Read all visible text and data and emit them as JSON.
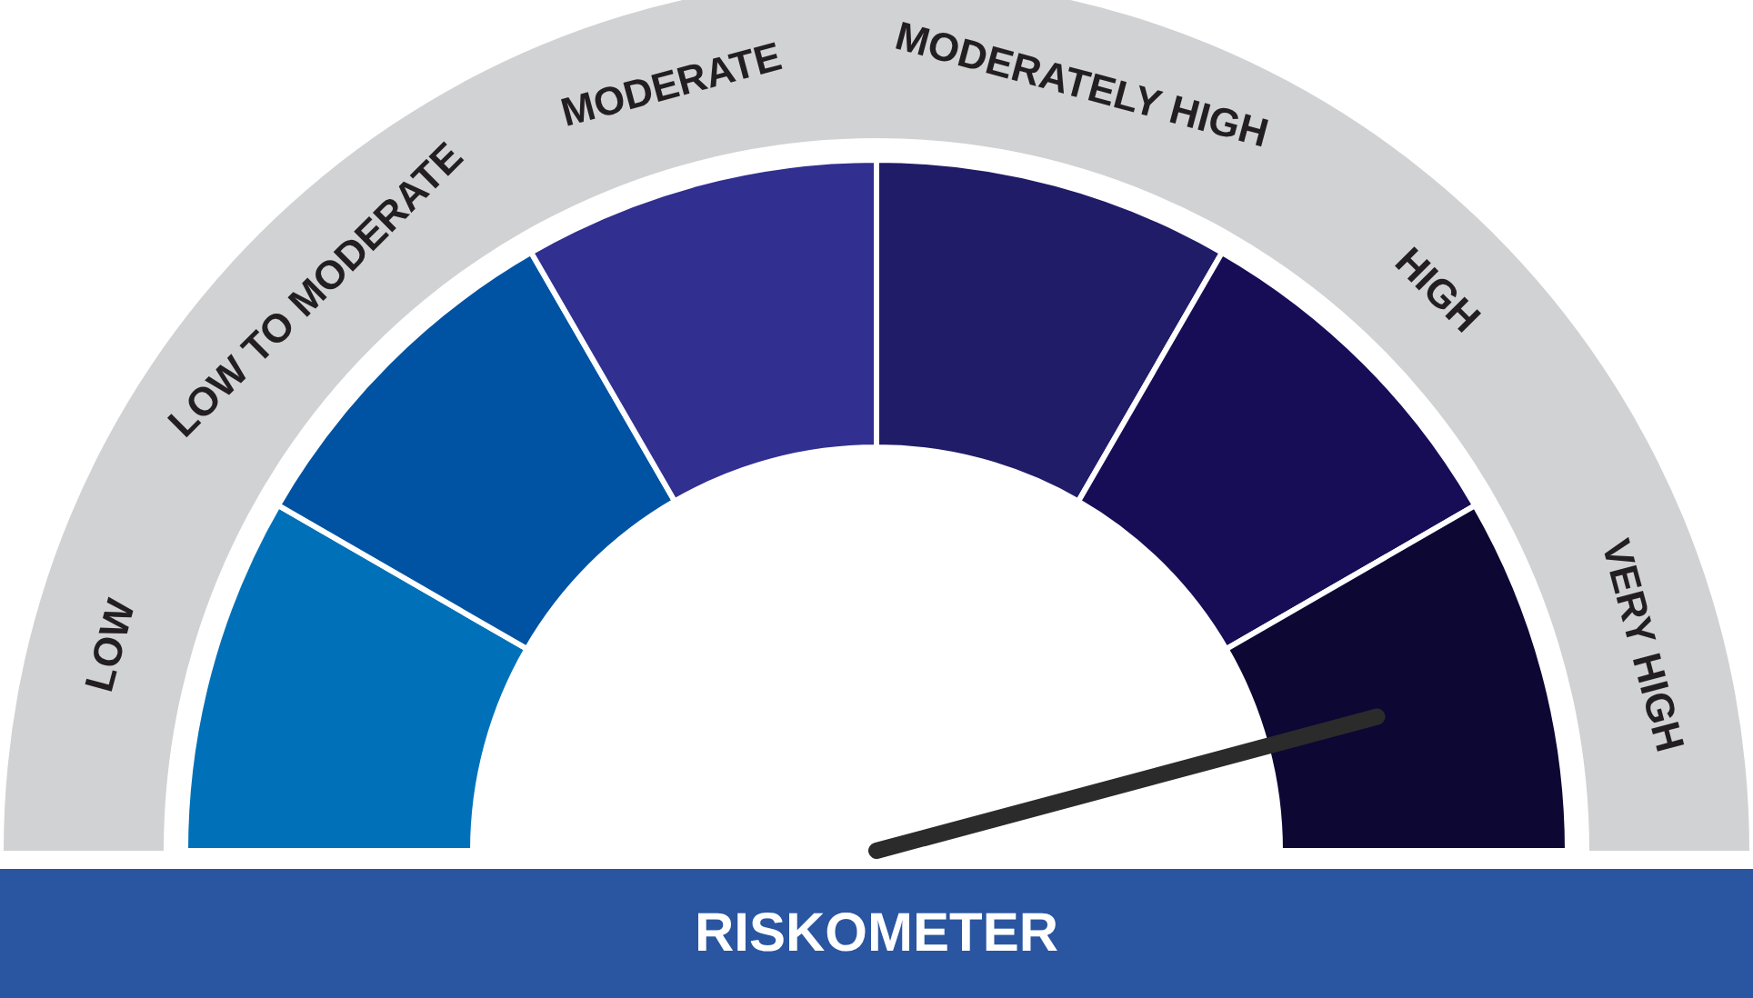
{
  "chart_data": {
    "type": "donut",
    "title": "RISKOMETER",
    "categories": [
      "LOW",
      "LOW TO MODERATE",
      "MODERATE",
      "MODERATELY HIGH",
      "HIGH",
      "VERY HIGH"
    ],
    "values": [
      16.67,
      16.67,
      16.66,
      16.67,
      16.67,
      16.66
    ],
    "colors": [
      "#0071b9",
      "#0053a3",
      "#312f90",
      "#211c68",
      "#170d57",
      "#0d0734"
    ],
    "needle": "VERY HIGH"
  }
}
